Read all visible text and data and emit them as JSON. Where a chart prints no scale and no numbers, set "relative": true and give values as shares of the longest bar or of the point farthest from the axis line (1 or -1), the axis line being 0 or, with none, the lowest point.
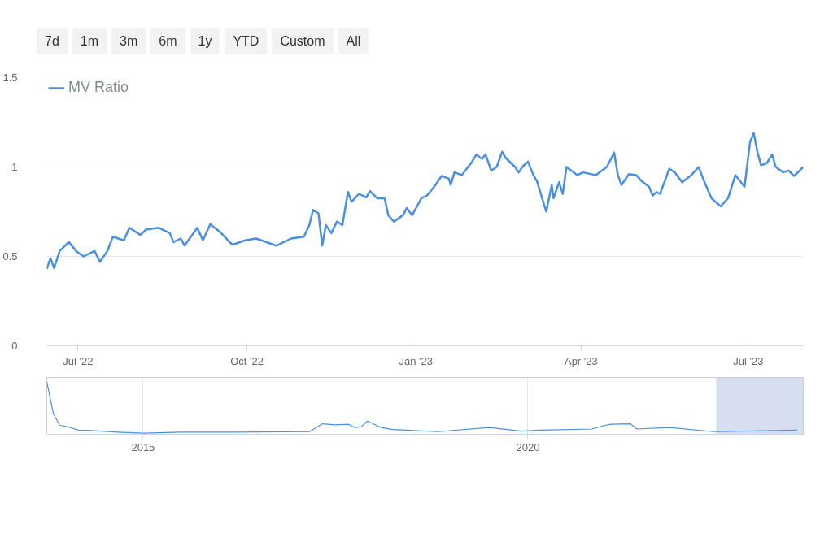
{
  "chart_data": [
    {
      "type": "line",
      "annotations": [
        "7d",
        "1m",
        "3m",
        "6m",
        "1y",
        "YTD",
        "Custom",
        "All"
      ],
      "legend": "top left",
      "grid": "y",
      "line_style": "solid",
      "xlim": [
        "2022-06-14",
        "2023-07-31"
      ],
      "xticks": [
        {
          "value": "2022-07-01",
          "label": "Jul '22"
        },
        {
          "value": "2022-10-01",
          "label": "Oct '22"
        },
        {
          "value": "2023-01-01",
          "label": "Jan '23"
        },
        {
          "value": "2023-04-01",
          "label": "Apr '23"
        },
        {
          "value": "2023-07-01",
          "label": "Jul '23"
        }
      ],
      "ylim": [
        0,
        1.5
      ],
      "yticks": [
        0,
        0.5,
        1,
        1.5
      ],
      "x": [
        "2022-06-14",
        "2022-06-16",
        "2022-06-18",
        "2022-06-21",
        "2022-06-26",
        "2022-06-30",
        "2022-07-04",
        "2022-07-10",
        "2022-07-13",
        "2022-07-17",
        "2022-07-20",
        "2022-07-26",
        "2022-07-29",
        "2022-08-04",
        "2022-08-07",
        "2022-08-14",
        "2022-08-20",
        "2022-08-22",
        "2022-08-26",
        "2022-08-28",
        "2022-09-04",
        "2022-09-07",
        "2022-09-11",
        "2022-09-16",
        "2022-09-23",
        "2022-09-30",
        "2022-10-06",
        "2022-10-17",
        "2022-10-25",
        "2022-11-01",
        "2022-11-04",
        "2022-11-06",
        "2022-11-09",
        "2022-11-11",
        "2022-11-13",
        "2022-11-16",
        "2022-11-19",
        "2022-11-22",
        "2022-11-25",
        "2022-11-27",
        "2022-12-01",
        "2022-12-05",
        "2022-12-07",
        "2022-12-11",
        "2022-12-15",
        "2022-12-17",
        "2022-12-20",
        "2022-12-25",
        "2022-12-27",
        "2022-12-30",
        "2023-01-04",
        "2023-01-07",
        "2023-01-11",
        "2023-01-15",
        "2023-01-19",
        "2023-01-20",
        "2023-01-22",
        "2023-01-26",
        "2023-01-31",
        "2023-02-03",
        "2023-02-06",
        "2023-02-08",
        "2023-02-11",
        "2023-02-14",
        "2023-02-17",
        "2023-02-19",
        "2023-02-24",
        "2023-02-26",
        "2023-02-28",
        "2023-03-03",
        "2023-03-06",
        "2023-03-08",
        "2023-03-13",
        "2023-03-16",
        "2023-03-17",
        "2023-03-20",
        "2023-03-22",
        "2023-03-24",
        "2023-03-30",
        "2023-04-02",
        "2023-04-09",
        "2023-04-15",
        "2023-04-19",
        "2023-04-21",
        "2023-04-23",
        "2023-04-27",
        "2023-05-01",
        "2023-05-04",
        "2023-05-08",
        "2023-05-10",
        "2023-05-12",
        "2023-05-14",
        "2023-05-19",
        "2023-05-22",
        "2023-05-26",
        "2023-05-31",
        "2023-06-04",
        "2023-06-07",
        "2023-06-11",
        "2023-06-16",
        "2023-06-20",
        "2023-06-24",
        "2023-06-29",
        "2023-07-02",
        "2023-07-04",
        "2023-07-06",
        "2023-07-08",
        "2023-07-11",
        "2023-07-14",
        "2023-07-16",
        "2023-07-20",
        "2023-07-23",
        "2023-07-26",
        "2023-07-31"
      ],
      "series": [
        {
          "name": "MV Ratio",
          "color": "#4a8fe2",
          "values": [
            0.43,
            0.49,
            0.435,
            0.53,
            0.58,
            0.53,
            0.5,
            0.53,
            0.47,
            0.53,
            0.61,
            0.59,
            0.66,
            0.62,
            0.65,
            0.66,
            0.63,
            0.58,
            0.6,
            0.56,
            0.66,
            0.59,
            0.68,
            0.64,
            0.565,
            0.59,
            0.6,
            0.56,
            0.6,
            0.61,
            0.675,
            0.76,
            0.74,
            0.56,
            0.675,
            0.63,
            0.695,
            0.675,
            0.86,
            0.805,
            0.85,
            0.83,
            0.865,
            0.825,
            0.825,
            0.73,
            0.695,
            0.73,
            0.77,
            0.73,
            0.825,
            0.84,
            0.89,
            0.95,
            0.935,
            0.9,
            0.97,
            0.955,
            1.02,
            1.07,
            1.045,
            1.07,
            0.98,
            1.0,
            1.085,
            1.05,
            1.0,
            0.97,
            1.0,
            1.03,
            0.955,
            0.92,
            0.75,
            0.9,
            0.825,
            0.915,
            0.85,
            1.0,
            0.955,
            0.97,
            0.955,
            1.0,
            1.08,
            0.955,
            0.9,
            0.96,
            0.955,
            0.92,
            0.89,
            0.84,
            0.86,
            0.85,
            0.99,
            0.97,
            0.915,
            0.955,
            1.0,
            0.92,
            0.825,
            0.78,
            0.825,
            0.955,
            0.89,
            1.14,
            1.19,
            1.085,
            1.01,
            1.02,
            1.07,
            1.0,
            0.97,
            0.98,
            0.95,
            1.0
          ]
        }
      ]
    },
    {
      "type": "line",
      "relative": true,
      "grid": "x",
      "xlim": [
        "2013-10",
        "2023-07-31"
      ],
      "xticks": [
        {
          "value": "2015-01-01",
          "label": "2015"
        },
        {
          "value": "2020-01-01",
          "label": "2020"
        }
      ],
      "bands": [
        {
          "axis": "x",
          "from": "2022-06-14",
          "to": "2023-07-31",
          "color": "#ccd6eb"
        }
      ],
      "x": [
        "2013-10",
        "2013-11",
        "2013-12",
        "2014-01",
        "2014-03",
        "2014-05",
        "2014-09",
        "2015-01",
        "2015-07",
        "2016-03",
        "2017-03",
        "2017-05",
        "2017-07",
        "2017-09",
        "2017-10",
        "2017-11",
        "2017-12",
        "2018-02",
        "2018-04",
        "2018-11",
        "2019-07",
        "2019-12",
        "2020-03",
        "2020-11",
        "2021-01",
        "2021-02",
        "2021-05",
        "2021-06",
        "2021-11",
        "2022-06",
        "2023-07"
      ],
      "series": [
        {
          "color": "#4a8fe2",
          "values": [
            1.0,
            0.4,
            0.17,
            0.15,
            0.08,
            0.07,
            0.04,
            0.02,
            0.04,
            0.04,
            0.05,
            0.2,
            0.18,
            0.19,
            0.13,
            0.14,
            0.25,
            0.13,
            0.09,
            0.05,
            0.13,
            0.06,
            0.08,
            0.1,
            0.17,
            0.19,
            0.2,
            0.1,
            0.13,
            0.05,
            0.08
          ]
        }
      ]
    }
  ]
}
